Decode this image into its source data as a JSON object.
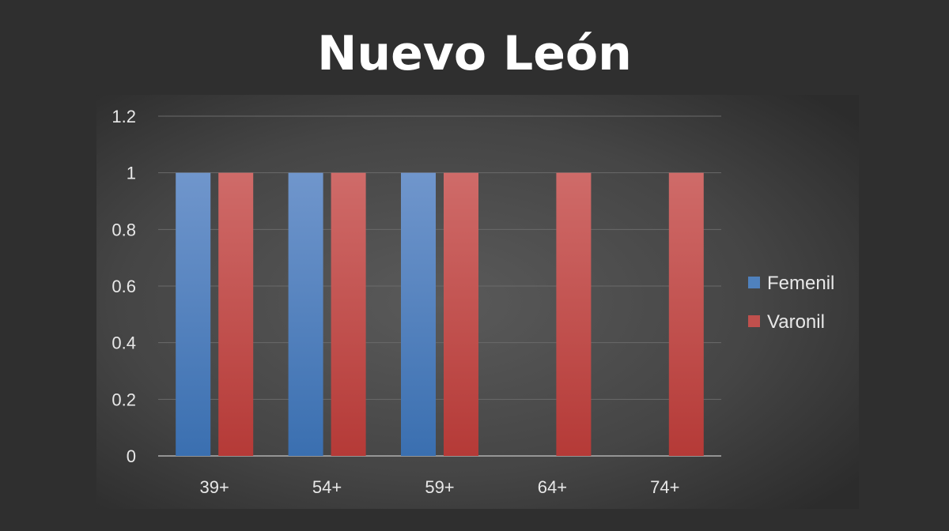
{
  "title": "Nuevo León",
  "chart_data": {
    "type": "bar",
    "title": "Nuevo León",
    "xlabel": "",
    "ylabel": "",
    "categories": [
      "39+",
      "54+",
      "59+",
      "64+",
      "74+"
    ],
    "series": [
      {
        "name": "Femenil",
        "values": [
          1,
          1,
          1,
          0,
          0
        ],
        "color": "#4f81bd"
      },
      {
        "name": "Varonil",
        "values": [
          1,
          1,
          1,
          1,
          1
        ],
        "color": "#c0504d"
      }
    ],
    "ylim": [
      0,
      1.2
    ],
    "yticks": [
      "0",
      "0.2",
      "0.4",
      "0.6",
      "0.8",
      "1",
      "1.2"
    ],
    "grid": true,
    "legend": "right",
    "background": "#2f2f2f"
  }
}
